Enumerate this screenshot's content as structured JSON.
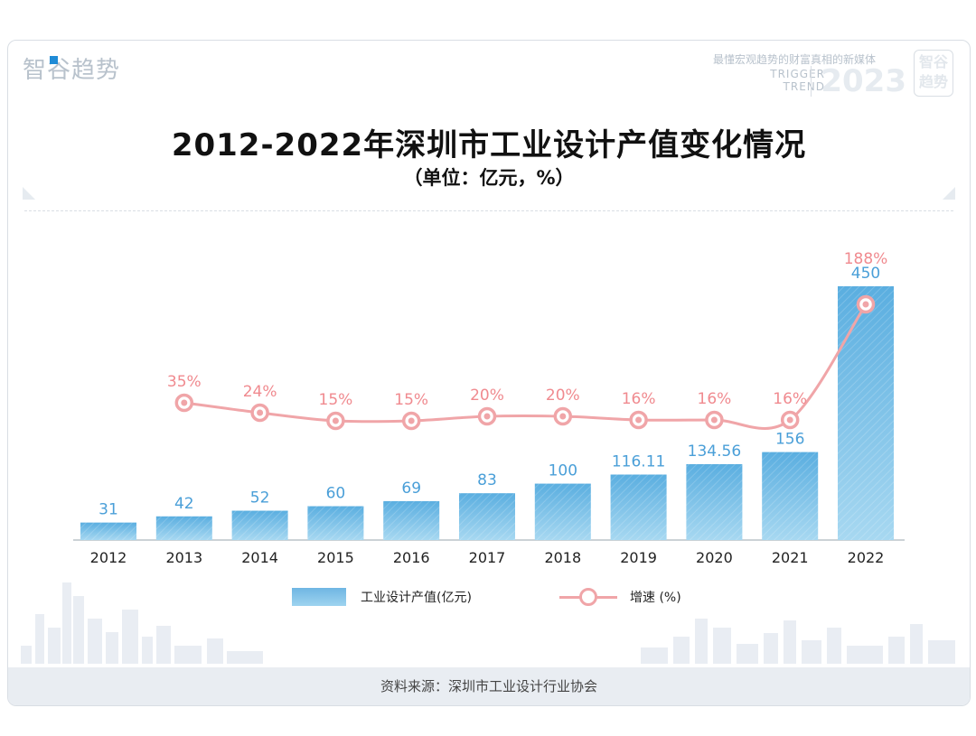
{
  "header": {
    "brand": "智谷趋势",
    "slogan": "最懂宏观趋势的财富真相的新媒体",
    "brand_en_1": "TRIGGER",
    "brand_en_2": "TREND",
    "year": "2023",
    "seal_1": "智谷",
    "seal_2": "趋势"
  },
  "footer": {
    "source": "资料来源：深圳市工业设计行业协会"
  },
  "colors": {
    "bar_top": "#5aaee0",
    "bar_bottom": "#a7d8f1",
    "line": "#f0a5a8",
    "bar_label": "#4a9fd8",
    "line_label": "#f08a8f"
  },
  "chart_data": {
    "type": "bar+line",
    "title": "2012-2022年深圳市工业设计产值变化情况",
    "subtitle": "（单位：亿元，%）",
    "categories": [
      "2012",
      "2013",
      "2014",
      "2015",
      "2016",
      "2017",
      "2018",
      "2019",
      "2020",
      "2021",
      "2022"
    ],
    "series": [
      {
        "name": "工业设计产值(亿元)",
        "type": "bar",
        "values": [
          31,
          42,
          52,
          60,
          69,
          83,
          100,
          116.11,
          134.56,
          156,
          450
        ],
        "labels": [
          "31",
          "42",
          "52",
          "60",
          "69",
          "83",
          "100",
          "116.11",
          "134.56",
          "156",
          "450"
        ]
      },
      {
        "name": "增速 (%)",
        "type": "line",
        "values": [
          null,
          35,
          24,
          15,
          15,
          20,
          20,
          16,
          16,
          16,
          188
        ],
        "labels": [
          "",
          "35%",
          "24%",
          "15%",
          "15%",
          "20%",
          "20%",
          "16%",
          "16%",
          "16%",
          "188%"
        ]
      }
    ],
    "legend": [
      {
        "label": "工业设计产值(亿元)",
        "kind": "bar"
      },
      {
        "label": "增速 (%)",
        "kind": "line"
      }
    ],
    "bar_ylim": [
      0,
      520
    ],
    "line_ylim": [
      0,
      200
    ],
    "legend_position": "bottom"
  }
}
